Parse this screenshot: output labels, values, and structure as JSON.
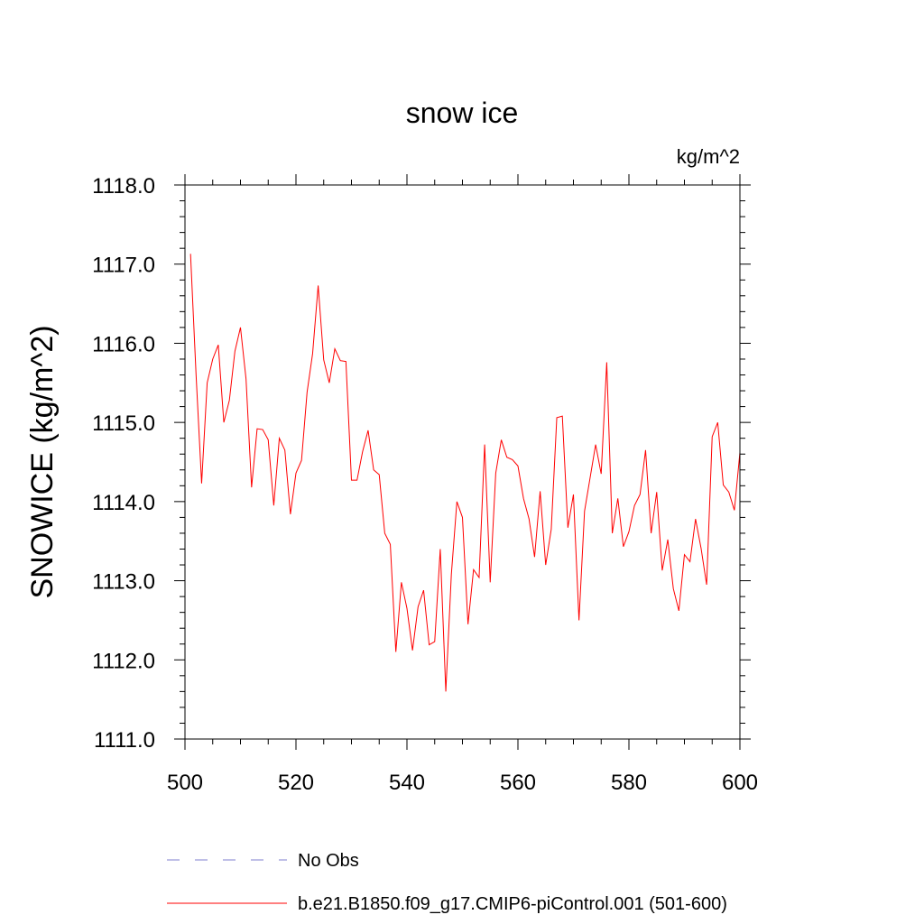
{
  "chart_data": {
    "type": "line",
    "title": "snow ice",
    "units": "kg/m^2",
    "ylabel": "SNOWICE  (kg/m^2)",
    "xlabel": "",
    "xlim": [
      500,
      600
    ],
    "ylim": [
      1111.0,
      1118.0
    ],
    "x_ticks": [
      500,
      520,
      540,
      560,
      580,
      600
    ],
    "x_tick_labels": [
      "500",
      "520",
      "540",
      "560",
      "580",
      "600"
    ],
    "y_ticks": [
      1111.0,
      1112.0,
      1113.0,
      1114.0,
      1115.0,
      1116.0,
      1117.0,
      1118.0
    ],
    "y_tick_labels": [
      "1111.0",
      "1112.0",
      "1113.0",
      "1114.0",
      "1115.0",
      "1116.0",
      "1117.0",
      "1118.0"
    ],
    "grid": false,
    "legend_position": "bottom",
    "series": [
      {
        "name": "b.e21.B1850.f09_g17.CMIP6-piControl.001 (501-600)",
        "color": "#ff0000",
        "line_style": "solid",
        "x": [
          501,
          502,
          503,
          504,
          505,
          506,
          507,
          508,
          509,
          510,
          511,
          512,
          513,
          514,
          515,
          516,
          517,
          518,
          519,
          520,
          521,
          522,
          523,
          524,
          525,
          526,
          527,
          528,
          529,
          530,
          531,
          532,
          533,
          534,
          535,
          536,
          537,
          538,
          539,
          540,
          541,
          542,
          543,
          544,
          545,
          546,
          547,
          548,
          549,
          550,
          551,
          552,
          553,
          554,
          555,
          556,
          557,
          558,
          559,
          560,
          561,
          562,
          563,
          564,
          565,
          566,
          567,
          568,
          569,
          570,
          571,
          572,
          573,
          574,
          575,
          576,
          577,
          578,
          579,
          580,
          581,
          582,
          583,
          584,
          585,
          586,
          587,
          588,
          589,
          590,
          591,
          592,
          593,
          594,
          595,
          596,
          597,
          598,
          599,
          600
        ],
        "values": [
          1117.13,
          1115.6,
          1114.23,
          1115.5,
          1115.8,
          1115.98,
          1115.0,
          1115.28,
          1115.9,
          1116.2,
          1115.55,
          1114.18,
          1114.92,
          1114.91,
          1114.78,
          1113.95,
          1114.8,
          1114.65,
          1113.84,
          1114.36,
          1114.52,
          1115.38,
          1115.87,
          1116.73,
          1115.79,
          1115.5,
          1115.93,
          1115.78,
          1115.77,
          1114.27,
          1114.27,
          1114.63,
          1114.9,
          1114.4,
          1114.34,
          1113.6,
          1113.46,
          1112.1,
          1112.98,
          1112.65,
          1112.12,
          1112.67,
          1112.88,
          1112.19,
          1112.23,
          1113.4,
          1111.6,
          1113.08,
          1114.0,
          1113.8,
          1112.45,
          1113.14,
          1113.04,
          1114.72,
          1112.98,
          1114.36,
          1114.78,
          1114.56,
          1114.53,
          1114.45,
          1114.04,
          1113.78,
          1113.3,
          1114.13,
          1113.2,
          1113.65,
          1115.06,
          1115.08,
          1113.67,
          1114.09,
          1112.5,
          1113.88,
          1114.3,
          1114.72,
          1114.35,
          1115.76,
          1113.6,
          1114.04,
          1113.43,
          1113.62,
          1113.95,
          1114.09,
          1114.65,
          1113.6,
          1114.12,
          1113.13,
          1113.52,
          1112.9,
          1112.62,
          1113.33,
          1113.24,
          1113.78,
          1113.41,
          1112.95,
          1114.82,
          1115.0,
          1114.21,
          1114.12,
          1113.89,
          1114.62
        ]
      },
      {
        "name": "No Obs",
        "color": "#7f7fcf",
        "line_style": "dashed",
        "x": [],
        "values": []
      }
    ]
  }
}
